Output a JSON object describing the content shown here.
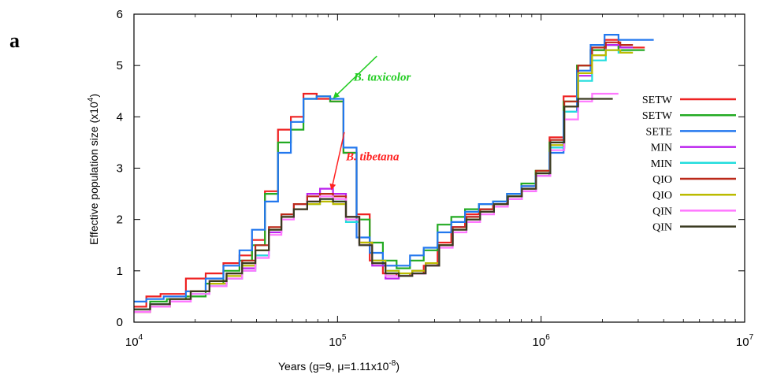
{
  "chart_data": {
    "type": "line",
    "panel_label": "a",
    "xlabel": {
      "prefix": "Years (g=9, ",
      "mu": "μ",
      "mid": "=1.11x10",
      "exp": "-8",
      "suffix": ")"
    },
    "ylabel": {
      "prefix": "Effective population size (x10",
      "exp": "4",
      "suffix": ")"
    },
    "xscale": "log",
    "xlim": [
      10000,
      10000000
    ],
    "ylim": [
      0,
      6
    ],
    "yticks": [
      0,
      1,
      2,
      3,
      4,
      5,
      6
    ],
    "xticks": [
      {
        "value": 10000,
        "base": "10",
        "exp": "4"
      },
      {
        "value": 100000,
        "base": "10",
        "exp": "5"
      },
      {
        "value": 1000000,
        "base": "10",
        "exp": "6"
      },
      {
        "value": 10000000,
        "base": "10",
        "exp": "7"
      }
    ],
    "grid": false,
    "legend_position": "right",
    "annotations": [
      {
        "text": "B. taxicolor",
        "color": "#22cc22",
        "anchor": [
          70000,
          5.0
        ],
        "target": [
          85000,
          4.38
        ],
        "label_at": [
          120000,
          4.7
        ]
      },
      {
        "text": "B. tibetana",
        "color": "#ff2222",
        "anchor": [
          108000,
          3.7
        ],
        "target": [
          92000,
          2.6
        ],
        "label_at": [
          110000,
          3.15
        ]
      }
    ],
    "series": [
      {
        "name": "SETW",
        "color": "#ee2222",
        "x": [
          10000,
          11500,
          13500,
          18000,
          22500,
          27500,
          33000,
          38000,
          44000,
          51000,
          59000,
          68000,
          79000,
          92000,
          107000,
          124000,
          144000,
          167000,
          195000,
          227000,
          265000,
          310000,
          362000,
          423000,
          495000,
          580000,
          680000,
          800000,
          940000,
          1100000,
          1290000,
          1500000,
          1750000,
          2050000,
          2400000,
          2800000
        ],
        "y": [
          0.3,
          0.5,
          0.55,
          0.85,
          0.95,
          1.15,
          1.3,
          1.6,
          2.55,
          3.75,
          4.0,
          4.45,
          4.35,
          4.3,
          3.3,
          2.1,
          1.2,
          0.95,
          0.9,
          0.95,
          1.1,
          1.55,
          1.85,
          2.1,
          2.2,
          2.3,
          2.45,
          2.65,
          2.9,
          3.6,
          4.4,
          5.0,
          5.3,
          5.5,
          5.35,
          5.35
        ]
      },
      {
        "name": "SETW",
        "color": "#22aa22",
        "x": [
          10000,
          12000,
          14500,
          18000,
          22500,
          27500,
          33000,
          38000,
          44000,
          51000,
          59000,
          68000,
          79000,
          92000,
          107000,
          124000,
          144000,
          167000,
          195000,
          227000,
          265000,
          310000,
          362000,
          423000,
          495000,
          580000,
          680000,
          800000,
          940000,
          1100000,
          1290000,
          1500000,
          1750000,
          2050000,
          2400000,
          2800000
        ],
        "y": [
          0.25,
          0.4,
          0.45,
          0.5,
          0.75,
          1.0,
          1.2,
          1.5,
          2.5,
          3.5,
          3.75,
          4.35,
          4.4,
          4.3,
          3.3,
          2.0,
          1.55,
          1.2,
          1.05,
          1.2,
          1.4,
          1.9,
          2.05,
          2.2,
          2.3,
          2.35,
          2.5,
          2.7,
          2.95,
          3.5,
          4.3,
          5.0,
          5.3,
          5.4,
          5.3,
          5.3
        ]
      },
      {
        "name": "SETE",
        "color": "#2277ee",
        "x": [
          10000,
          11500,
          14000,
          18000,
          22500,
          27500,
          33000,
          38000,
          44000,
          51000,
          59000,
          68000,
          79000,
          92000,
          107000,
          124000,
          144000,
          167000,
          195000,
          227000,
          265000,
          310000,
          362000,
          423000,
          495000,
          580000,
          680000,
          800000,
          940000,
          1100000,
          1290000,
          1500000,
          1750000,
          2050000,
          2400000,
          3100000
        ],
        "y": [
          0.4,
          0.45,
          0.5,
          0.6,
          0.85,
          1.1,
          1.4,
          1.8,
          2.35,
          3.3,
          3.9,
          4.35,
          4.4,
          4.35,
          3.4,
          1.65,
          1.35,
          1.1,
          1.1,
          1.3,
          1.45,
          1.75,
          1.95,
          2.15,
          2.3,
          2.35,
          2.5,
          2.65,
          2.85,
          3.3,
          4.1,
          4.9,
          5.4,
          5.6,
          5.5,
          5.5
        ]
      },
      {
        "name": "MIN",
        "color": "#bb22ee",
        "x": [
          10000,
          12000,
          15000,
          19000,
          23500,
          28500,
          34000,
          39500,
          46000,
          53000,
          61000,
          71000,
          82000,
          95000,
          110000,
          128000,
          148000,
          172000,
          200000,
          233000,
          271000,
          316000,
          368000,
          430000,
          502000,
          587000,
          687000,
          805000,
          945000,
          1110000,
          1300000,
          1520000,
          1780000,
          2080000,
          2450000
        ],
        "y": [
          0.2,
          0.3,
          0.4,
          0.6,
          0.75,
          0.85,
          1.05,
          1.3,
          1.75,
          2.1,
          2.3,
          2.5,
          2.6,
          2.5,
          2.05,
          1.5,
          1.1,
          0.85,
          0.9,
          0.95,
          1.1,
          1.5,
          1.85,
          2.05,
          2.2,
          2.3,
          2.4,
          2.55,
          2.85,
          3.4,
          4.2,
          4.8,
          5.2,
          5.4,
          5.35
        ]
      },
      {
        "name": "MIN",
        "color": "#22dddd",
        "x": [
          10000,
          12000,
          15000,
          19000,
          23500,
          28500,
          34000,
          39500,
          46000,
          53000,
          61000,
          71000,
          82000,
          95000,
          110000,
          128000,
          148000,
          172000,
          200000,
          233000,
          271000,
          316000,
          368000,
          430000,
          502000,
          587000,
          687000,
          805000,
          945000,
          1110000,
          1300000,
          1520000,
          1780000,
          2080000,
          2400000
        ],
        "y": [
          0.25,
          0.35,
          0.45,
          0.55,
          0.7,
          0.85,
          1.0,
          1.3,
          1.8,
          2.1,
          2.2,
          2.3,
          2.4,
          2.35,
          1.95,
          1.5,
          1.2,
          1.0,
          0.95,
          1.0,
          1.15,
          1.5,
          1.8,
          2.0,
          2.15,
          2.3,
          2.45,
          2.6,
          2.9,
          3.4,
          4.1,
          4.7,
          5.1,
          5.3,
          5.25
        ]
      },
      {
        "name": "QIO",
        "color": "#bb2a1a",
        "x": [
          10000,
          12000,
          15000,
          19000,
          23500,
          28500,
          34000,
          39500,
          46000,
          53000,
          61000,
          71000,
          82000,
          95000,
          110000,
          128000,
          148000,
          172000,
          200000,
          233000,
          271000,
          316000,
          368000,
          430000,
          502000,
          587000,
          687000,
          805000,
          945000,
          1110000,
          1300000,
          1520000,
          1780000,
          2080000,
          2450000
        ],
        "y": [
          0.2,
          0.3,
          0.45,
          0.6,
          0.8,
          0.95,
          1.2,
          1.5,
          1.85,
          2.1,
          2.3,
          2.45,
          2.5,
          2.45,
          2.05,
          1.55,
          1.15,
          0.95,
          0.9,
          1.0,
          1.15,
          1.5,
          1.85,
          2.05,
          2.2,
          2.3,
          2.45,
          2.6,
          2.95,
          3.55,
          4.3,
          5.0,
          5.35,
          5.45,
          5.4
        ]
      },
      {
        "name": "QIO",
        "color": "#bbbb00",
        "x": [
          10000,
          12000,
          15000,
          19000,
          23500,
          28500,
          34000,
          39500,
          46000,
          53000,
          61000,
          71000,
          82000,
          95000,
          110000,
          128000,
          148000,
          172000,
          200000,
          233000,
          271000,
          316000,
          368000,
          430000,
          502000,
          587000,
          687000,
          805000,
          945000,
          1110000,
          1300000,
          1520000,
          1780000,
          2080000,
          2450000
        ],
        "y": [
          0.2,
          0.3,
          0.45,
          0.6,
          0.75,
          0.9,
          1.1,
          1.4,
          1.8,
          2.05,
          2.2,
          2.3,
          2.35,
          2.3,
          2.0,
          1.55,
          1.2,
          1.0,
          0.95,
          1.0,
          1.15,
          1.5,
          1.8,
          2.0,
          2.15,
          2.3,
          2.45,
          2.6,
          2.9,
          3.45,
          4.2,
          4.85,
          5.2,
          5.3,
          5.25
        ]
      },
      {
        "name": "QIN",
        "color": "#ff77ff",
        "x": [
          10000,
          12000,
          15000,
          19000,
          23500,
          28500,
          34000,
          39500,
          46000,
          53000,
          61000,
          71000,
          82000,
          95000,
          110000,
          128000,
          148000,
          172000,
          200000,
          233000,
          271000,
          316000,
          368000,
          430000,
          502000,
          587000,
          687000,
          805000,
          945000,
          1110000,
          1300000,
          1520000,
          1780000,
          2080000
        ],
        "y": [
          0.2,
          0.3,
          0.4,
          0.55,
          0.7,
          0.85,
          1.0,
          1.25,
          1.7,
          2.0,
          2.2,
          2.35,
          2.45,
          2.4,
          2.0,
          1.5,
          1.15,
          0.9,
          0.9,
          0.95,
          1.1,
          1.45,
          1.75,
          1.95,
          2.1,
          2.25,
          2.4,
          2.55,
          2.85,
          3.35,
          3.95,
          4.3,
          4.45,
          4.45
        ]
      },
      {
        "name": "QIN",
        "color": "#3a3a20",
        "x": [
          10000,
          12000,
          15000,
          19000,
          23500,
          28500,
          34000,
          39500,
          46000,
          53000,
          61000,
          71000,
          82000,
          95000,
          110000,
          128000,
          148000,
          172000,
          200000,
          233000,
          271000,
          316000,
          368000,
          430000,
          502000,
          587000,
          687000,
          805000,
          945000,
          1110000,
          1300000,
          1520000,
          1780000,
          1950000
        ],
        "y": [
          0.25,
          0.35,
          0.45,
          0.6,
          0.8,
          0.95,
          1.15,
          1.4,
          1.8,
          2.05,
          2.2,
          2.35,
          2.4,
          2.35,
          2.05,
          1.5,
          1.15,
          0.95,
          0.9,
          0.95,
          1.1,
          1.5,
          1.8,
          2.0,
          2.15,
          2.3,
          2.45,
          2.6,
          2.9,
          3.5,
          4.2,
          4.35,
          4.35,
          4.35
        ]
      }
    ]
  }
}
